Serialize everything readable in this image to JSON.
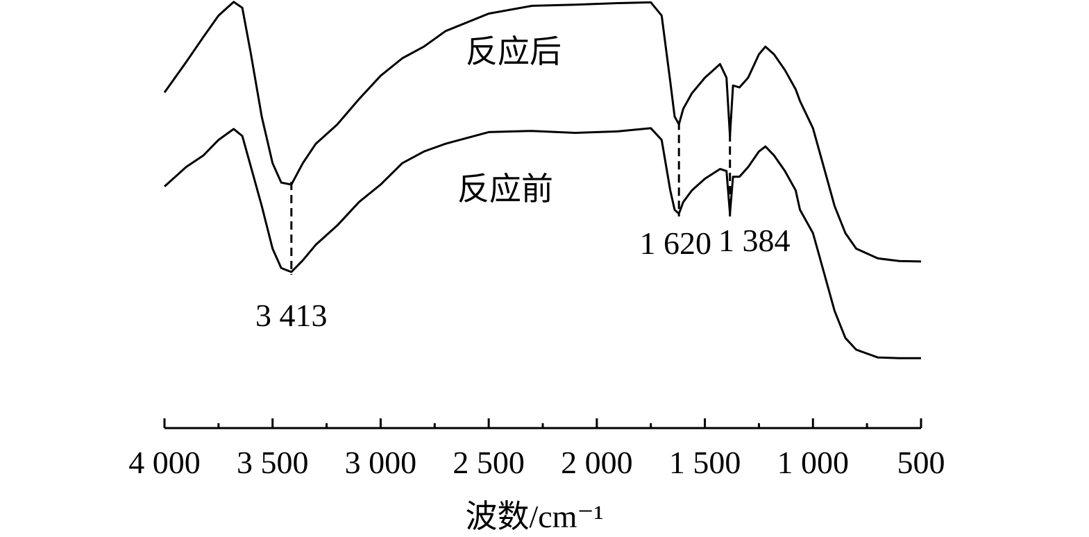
{
  "chart_data": {
    "type": "line",
    "xlabel": "波数/cm⁻¹",
    "ylabel": "",
    "xlim": [
      4000,
      500
    ],
    "x_reversed": true,
    "x_ticks": [
      4000,
      3500,
      3000,
      2500,
      2000,
      1500,
      1000,
      500
    ],
    "x_tick_labels": [
      "4 000",
      "3 500",
      "3 000",
      "2 500",
      "2 000",
      "1 500",
      "1 000",
      "500"
    ],
    "grid": false,
    "legend": "none",
    "series": [
      {
        "name": "反应后",
        "points": [
          [
            4000,
            0.762
          ],
          [
            3900,
            0.84
          ],
          [
            3820,
            0.905
          ],
          [
            3750,
            0.96
          ],
          [
            3680,
            0.995
          ],
          [
            3640,
            0.98
          ],
          [
            3600,
            0.86
          ],
          [
            3550,
            0.7
          ],
          [
            3500,
            0.58
          ],
          [
            3460,
            0.53
          ],
          [
            3413,
            0.525
          ],
          [
            3360,
            0.58
          ],
          [
            3300,
            0.63
          ],
          [
            3200,
            0.68
          ],
          [
            3100,
            0.745
          ],
          [
            3000,
            0.805
          ],
          [
            2900,
            0.85
          ],
          [
            2800,
            0.88
          ],
          [
            2700,
            0.92
          ],
          [
            2500,
            0.965
          ],
          [
            2300,
            0.985
          ],
          [
            2100,
            0.988
          ],
          [
            1900,
            0.992
          ],
          [
            1750,
            0.994
          ],
          [
            1700,
            0.96
          ],
          [
            1660,
            0.79
          ],
          [
            1640,
            0.7
          ],
          [
            1620,
            0.68
          ],
          [
            1600,
            0.72
          ],
          [
            1560,
            0.76
          ],
          [
            1500,
            0.8
          ],
          [
            1430,
            0.835
          ],
          [
            1400,
            0.8
          ],
          [
            1384,
            0.65
          ],
          [
            1370,
            0.78
          ],
          [
            1340,
            0.775
          ],
          [
            1300,
            0.8
          ],
          [
            1250,
            0.86
          ],
          [
            1220,
            0.88
          ],
          [
            1180,
            0.86
          ],
          [
            1130,
            0.82
          ],
          [
            1080,
            0.77
          ],
          [
            1060,
            0.74
          ],
          [
            1000,
            0.67
          ],
          [
            950,
            0.57
          ],
          [
            900,
            0.47
          ],
          [
            850,
            0.4
          ],
          [
            800,
            0.36
          ],
          [
            700,
            0.335
          ],
          [
            600,
            0.328
          ],
          [
            500,
            0.327
          ]
        ]
      },
      {
        "name": "反应前",
        "points": [
          [
            4000,
            0.52
          ],
          [
            3900,
            0.57
          ],
          [
            3820,
            0.6
          ],
          [
            3750,
            0.64
          ],
          [
            3680,
            0.668
          ],
          [
            3640,
            0.65
          ],
          [
            3600,
            0.57
          ],
          [
            3550,
            0.47
          ],
          [
            3500,
            0.36
          ],
          [
            3460,
            0.31
          ],
          [
            3413,
            0.3
          ],
          [
            3360,
            0.33
          ],
          [
            3300,
            0.37
          ],
          [
            3200,
            0.42
          ],
          [
            3100,
            0.48
          ],
          [
            3000,
            0.525
          ],
          [
            2900,
            0.58
          ],
          [
            2800,
            0.61
          ],
          [
            2700,
            0.63
          ],
          [
            2500,
            0.66
          ],
          [
            2300,
            0.663
          ],
          [
            2100,
            0.658
          ],
          [
            1900,
            0.662
          ],
          [
            1750,
            0.67
          ],
          [
            1700,
            0.64
          ],
          [
            1660,
            0.51
          ],
          [
            1640,
            0.46
          ],
          [
            1620,
            0.45
          ],
          [
            1600,
            0.48
          ],
          [
            1560,
            0.51
          ],
          [
            1500,
            0.54
          ],
          [
            1430,
            0.565
          ],
          [
            1400,
            0.56
          ],
          [
            1384,
            0.45
          ],
          [
            1370,
            0.545
          ],
          [
            1340,
            0.545
          ],
          [
            1300,
            0.57
          ],
          [
            1250,
            0.61
          ],
          [
            1220,
            0.623
          ],
          [
            1180,
            0.6
          ],
          [
            1130,
            0.56
          ],
          [
            1080,
            0.51
          ],
          [
            1060,
            0.46
          ],
          [
            1000,
            0.4
          ],
          [
            950,
            0.3
          ],
          [
            900,
            0.2
          ],
          [
            850,
            0.13
          ],
          [
            800,
            0.1
          ],
          [
            700,
            0.08
          ],
          [
            600,
            0.078
          ],
          [
            500,
            0.078
          ]
        ]
      }
    ],
    "annotations": [
      {
        "text": "3 413",
        "x": 3413
      },
      {
        "text": "1 620",
        "x": 1620
      },
      {
        "text": "1 384",
        "x": 1384
      }
    ]
  }
}
